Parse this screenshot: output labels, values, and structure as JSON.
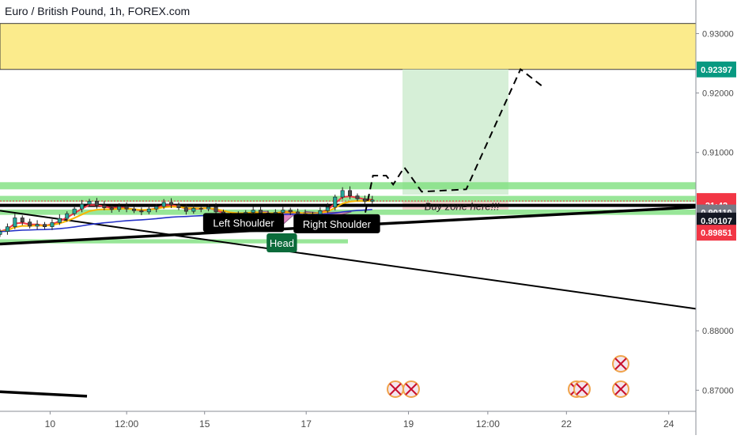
{
  "title": "Euro / British Pound, 1h, FOREX.com",
  "chart_data": {
    "type": "candlestick",
    "symbol": "EURGBP",
    "interval": "1h",
    "y_range": [
      0.86645,
      0.93565
    ],
    "x_range": [
      0,
      100
    ],
    "y_ticks": [
      "0.93000",
      "0.92000",
      "0.91000",
      "0.88000",
      "0.87000"
    ],
    "x_ticks": [
      {
        "label": "10",
        "x": 7.2
      },
      {
        "label": "12:00",
        "x": 18.2
      },
      {
        "label": "15",
        "x": 29.4
      },
      {
        "label": "17",
        "x": 44.0
      },
      {
        "label": "19",
        "x": 58.7
      },
      {
        "label": "12:00",
        "x": 70.1
      },
      {
        "label": "22",
        "x": 81.4
      },
      {
        "label": "24",
        "x": 96.1
      }
    ],
    "price_labels": [
      {
        "text": "0.92397",
        "price": 0.92397,
        "color": "#089981"
      },
      {
        "text": "0.90183",
        "price": 0.90183,
        "color": "#f23645"
      },
      {
        "text": "21:42",
        "price": 0.90113,
        "color": "#f23645"
      },
      {
        "text": "0.90110",
        "price": 0.8999,
        "color": "#787b86"
      },
      {
        "text": "0.90107",
        "price": 0.89855,
        "color": "#131722"
      },
      {
        "text": "0.89851",
        "price": 0.8965,
        "color": "#f23645"
      }
    ],
    "zones": [
      {
        "name": "resistance",
        "from": 0.92397,
        "to": 0.9317,
        "color": "#fbeb8c"
      },
      {
        "name": "target",
        "from": 0.9029,
        "to": 0.92397,
        "color": "#d6efd7"
      },
      {
        "name": "stop",
        "from": 0.90038,
        "to": 0.9018,
        "color": "#f8d3d3"
      }
    ],
    "annotations": [
      {
        "text": "Left Shoulder",
        "x": 35.0,
        "price": 0.8982,
        "box": true
      },
      {
        "text": "Head",
        "x": 40.5,
        "price": 0.8948,
        "box": true
      },
      {
        "text": "Right Shoulder",
        "x": 48.4,
        "price": 0.898,
        "box": true
      },
      {
        "text": "Buy zone here!!!",
        "x": 61.0,
        "price": 0.901,
        "box": false
      }
    ],
    "projection": [
      [
        52.5,
        0.8999
      ],
      [
        53.6,
        0.9061
      ],
      [
        55.5,
        0.9061
      ],
      [
        56.5,
        0.9046
      ],
      [
        58.1,
        0.9075
      ],
      [
        60.6,
        0.9034
      ],
      [
        67.0,
        0.9038
      ],
      [
        74.8,
        0.924
      ],
      [
        78.3,
        0.9208
      ]
    ],
    "close": [
      0.8967,
      0.8975,
      0.899,
      0.8983,
      0.8976,
      0.8979,
      0.8975,
      0.8982,
      0.8989,
      0.8997,
      0.9005,
      0.9013,
      0.9018,
      0.9011,
      0.9007,
      0.9004,
      0.9009,
      0.9005,
      0.9002,
      0.9,
      0.9005,
      0.9009,
      0.9016,
      0.9012,
      0.9007,
      0.9001,
      0.9006,
      0.9005,
      0.9008,
      0.9,
      0.8993,
      0.899,
      0.8994,
      0.8999,
      0.9003,
      0.8998,
      0.8994,
      0.8999,
      0.9003,
      0.9,
      0.8997,
      0.8993,
      0.8996,
      0.9002,
      0.9008,
      0.9025,
      0.9036,
      0.9027,
      0.9022,
      0.9018,
      0.902
    ],
    "series": [
      {
        "name": "ema_fast",
        "color": "#f23645"
      },
      {
        "name": "ema_mid",
        "color": "#f7b500"
      },
      {
        "name": "ema_slow",
        "color": "#2531c7"
      }
    ]
  }
}
